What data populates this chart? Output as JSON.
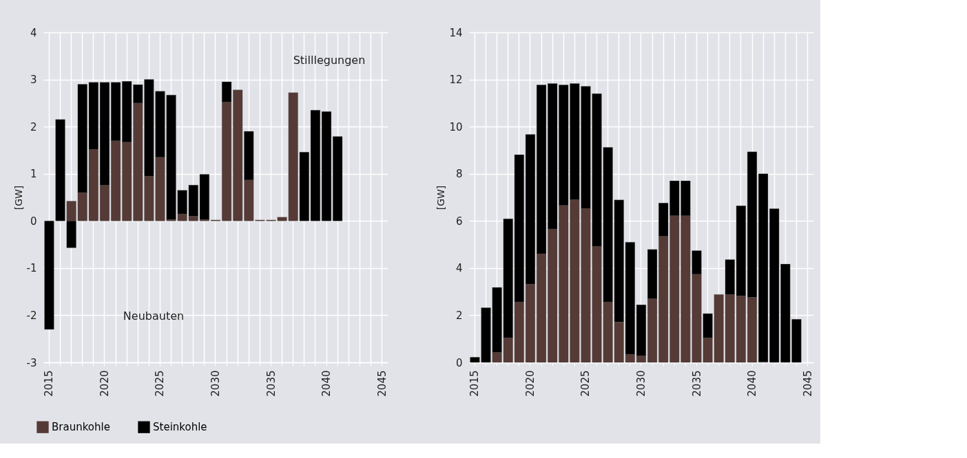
{
  "chart_data": [
    {
      "type": "bar",
      "stacked": true,
      "ylabel": "[GW]",
      "ylim": [
        -3,
        4
      ],
      "yticks": [
        -3,
        -2,
        -1,
        0,
        1,
        2,
        3,
        4
      ],
      "grid": true,
      "legend": "bottom left",
      "categories": [
        "2015",
        null,
        null,
        null,
        null,
        "2020",
        null,
        null,
        null,
        null,
        "2025",
        null,
        null,
        null,
        null,
        "2030",
        null,
        null,
        null,
        null,
        "2035",
        null,
        null,
        null,
        null,
        "2040",
        null,
        null,
        null,
        null,
        "2045"
      ],
      "annotations": [
        "Stilllegungen",
        "Neubauten"
      ],
      "series": [
        {
          "name": "Braunkohle",
          "color": "#553a36",
          "values": [
            null,
            null,
            0.42,
            0.6,
            1.52,
            0.76,
            1.7,
            1.67,
            2.5,
            0.95,
            1.35,
            0.03,
            0.15,
            0.1,
            0.03,
            0.02,
            2.52,
            2.78,
            0.87,
            0.02,
            0.02,
            0.08,
            2.72,
            null,
            null,
            null,
            null,
            null,
            null,
            null,
            null
          ]
        },
        {
          "name": "Steinkohle",
          "color": "#000000",
          "values": [
            -2.3,
            2.15,
            -0.57,
            2.3,
            1.42,
            2.18,
            1.24,
            1.29,
            0.39,
            2.05,
            1.4,
            2.64,
            0.5,
            0.66,
            0.96,
            null,
            0.43,
            null,
            1.03,
            null,
            null,
            null,
            null,
            1.46,
            2.35,
            2.32,
            1.79,
            null,
            null,
            null,
            null
          ]
        }
      ]
    },
    {
      "type": "bar",
      "stacked": true,
      "ylabel": "[GW]",
      "ylim": [
        0,
        14
      ],
      "yticks": [
        0,
        2,
        4,
        6,
        8,
        10,
        12,
        14
      ],
      "grid": true,
      "categories": [
        "2015",
        null,
        null,
        null,
        null,
        "2020",
        null,
        null,
        null,
        null,
        "2025",
        null,
        null,
        null,
        null,
        "2030",
        null,
        null,
        null,
        null,
        "2035",
        null,
        null,
        null,
        null,
        "2040",
        null,
        null,
        null,
        null,
        "2045"
      ],
      "series": [
        {
          "color": "#553a36",
          "values": [
            null,
            null,
            0.42,
            1.04,
            2.57,
            3.32,
            4.61,
            5.66,
            6.66,
            6.9,
            6.53,
            4.93,
            2.57,
            1.71,
            0.35,
            0.28,
            2.7,
            5.35,
            6.22,
            6.22,
            3.74,
            1.04,
            2.88,
            2.88,
            2.82,
            2.76,
            0.02,
            null,
            null,
            null,
            null
          ]
        },
        {
          "color": "#000000",
          "values": [
            0.22,
            2.32,
            2.76,
            5.05,
            6.24,
            6.35,
            7.16,
            6.17,
            5.11,
            4.93,
            5.18,
            6.47,
            6.55,
            5.18,
            4.75,
            2.16,
            2.09,
            1.41,
            1.48,
            1.48,
            1.0,
            1.03,
            null,
            1.48,
            3.82,
            6.17,
            7.98,
            6.52,
            4.17,
            1.83,
            null
          ]
        }
      ]
    }
  ]
}
